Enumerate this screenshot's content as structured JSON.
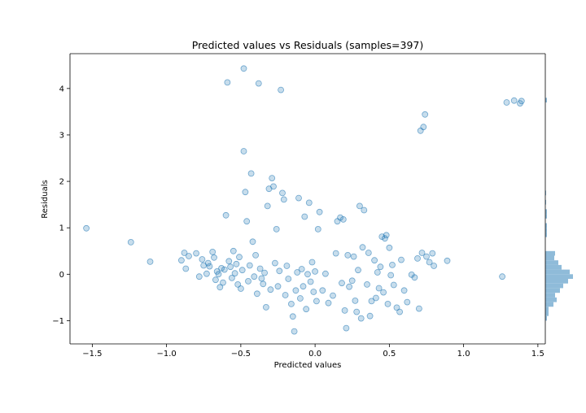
{
  "chart_data": {
    "type": "scatter",
    "title": "Predicted values vs Residuals (samples=397)",
    "xlabel": "Predicted values",
    "ylabel": "Residuals",
    "xlim": [
      -1.65,
      1.55
    ],
    "ylim": [
      -1.5,
      4.75
    ],
    "xticks": [
      -1.5,
      -1.0,
      -0.5,
      0.0,
      0.5,
      1.0,
      1.5
    ],
    "xtick_labels": [
      "−1.5",
      "−1.0",
      "−0.5",
      "0.0",
      "0.5",
      "1.0",
      "1.5"
    ],
    "yticks": [
      -1,
      0,
      1,
      2,
      3,
      4
    ],
    "ytick_labels": [
      "−1",
      "0",
      "1",
      "2",
      "3",
      "4"
    ],
    "point_color": "#1f77b4",
    "point_alpha": 0.25,
    "histogram_color": "#8fbbd9",
    "points": [
      [
        -1.54,
        0.99
      ],
      [
        -1.24,
        0.69
      ],
      [
        -1.11,
        0.27
      ],
      [
        -0.9,
        0.3
      ],
      [
        -0.88,
        0.46
      ],
      [
        -0.87,
        0.12
      ],
      [
        -0.85,
        0.39
      ],
      [
        -0.8,
        0.45
      ],
      [
        -0.78,
        -0.05
      ],
      [
        -0.76,
        0.32
      ],
      [
        -0.75,
        0.19
      ],
      [
        -0.73,
        0.01
      ],
      [
        -0.72,
        0.24
      ],
      [
        -0.71,
        0.17
      ],
      [
        -0.69,
        0.48
      ],
      [
        -0.68,
        0.36
      ],
      [
        -0.67,
        -0.12
      ],
      [
        -0.66,
        0.06
      ],
      [
        -0.65,
        0.0
      ],
      [
        -0.64,
        -0.28
      ],
      [
        -0.63,
        0.13
      ],
      [
        -0.62,
        -0.18
      ],
      [
        -0.61,
        0.1
      ],
      [
        -0.6,
        1.27
      ],
      [
        -0.59,
        4.13
      ],
      [
        -0.58,
        0.28
      ],
      [
        -0.57,
        0.16
      ],
      [
        -0.56,
        -0.08
      ],
      [
        -0.55,
        0.5
      ],
      [
        -0.54,
        0.02
      ],
      [
        -0.53,
        0.22
      ],
      [
        -0.52,
        -0.22
      ],
      [
        -0.51,
        0.37
      ],
      [
        -0.5,
        -0.31
      ],
      [
        -0.49,
        0.09
      ],
      [
        -0.48,
        4.43
      ],
      [
        -0.48,
        2.65
      ],
      [
        -0.47,
        1.77
      ],
      [
        -0.46,
        1.14
      ],
      [
        -0.45,
        -0.15
      ],
      [
        -0.44,
        0.19
      ],
      [
        -0.43,
        2.17
      ],
      [
        -0.42,
        0.7
      ],
      [
        -0.41,
        -0.05
      ],
      [
        -0.4,
        0.41
      ],
      [
        -0.39,
        -0.42
      ],
      [
        -0.38,
        4.11
      ],
      [
        -0.37,
        0.12
      ],
      [
        -0.36,
        -0.09
      ],
      [
        -0.35,
        -0.21
      ],
      [
        -0.34,
        0.03
      ],
      [
        -0.33,
        -0.71
      ],
      [
        -0.32,
        1.47
      ],
      [
        -0.31,
        1.84
      ],
      [
        -0.3,
        -0.33
      ],
      [
        -0.29,
        2.07
      ],
      [
        -0.28,
        1.89
      ],
      [
        -0.27,
        0.24
      ],
      [
        -0.26,
        0.97
      ],
      [
        -0.25,
        -0.26
      ],
      [
        -0.24,
        0.07
      ],
      [
        -0.23,
        3.97
      ],
      [
        -0.22,
        1.75
      ],
      [
        -0.21,
        1.61
      ],
      [
        -0.2,
        -0.45
      ],
      [
        -0.19,
        0.18
      ],
      [
        -0.18,
        -0.1
      ],
      [
        -0.16,
        -0.64
      ],
      [
        -0.15,
        -0.91
      ],
      [
        -0.14,
        -1.23
      ],
      [
        -0.13,
        -0.35
      ],
      [
        -0.12,
        0.04
      ],
      [
        -0.11,
        1.64
      ],
      [
        -0.1,
        -0.52
      ],
      [
        -0.09,
        0.11
      ],
      [
        -0.08,
        -0.26
      ],
      [
        -0.07,
        1.24
      ],
      [
        -0.06,
        -0.75
      ],
      [
        -0.05,
        0.0
      ],
      [
        -0.04,
        1.54
      ],
      [
        -0.03,
        -0.16
      ],
      [
        -0.02,
        0.26
      ],
      [
        -0.01,
        -0.38
      ],
      [
        0.0,
        0.06
      ],
      [
        0.01,
        -0.58
      ],
      [
        0.02,
        0.97
      ],
      [
        0.03,
        1.34
      ],
      [
        0.05,
        -0.35
      ],
      [
        0.07,
        0.01
      ],
      [
        0.09,
        -0.62
      ],
      [
        0.12,
        -0.46
      ],
      [
        0.14,
        0.45
      ],
      [
        0.15,
        1.14
      ],
      [
        0.17,
        1.22
      ],
      [
        0.18,
        -0.19
      ],
      [
        0.19,
        1.18
      ],
      [
        0.2,
        -0.78
      ],
      [
        0.21,
        -1.16
      ],
      [
        0.22,
        0.41
      ],
      [
        0.23,
        -0.27
      ],
      [
        0.25,
        -0.14
      ],
      [
        0.26,
        0.38
      ],
      [
        0.27,
        -0.57
      ],
      [
        0.28,
        -0.81
      ],
      [
        0.29,
        0.09
      ],
      [
        0.3,
        1.47
      ],
      [
        0.31,
        -0.95
      ],
      [
        0.32,
        0.58
      ],
      [
        0.33,
        1.38
      ],
      [
        0.35,
        -0.22
      ],
      [
        0.36,
        0.46
      ],
      [
        0.37,
        -0.9
      ],
      [
        0.38,
        -0.58
      ],
      [
        0.4,
        0.3
      ],
      [
        0.41,
        -0.51
      ],
      [
        0.42,
        0.04
      ],
      [
        0.43,
        -0.3
      ],
      [
        0.44,
        0.16
      ],
      [
        0.45,
        0.81
      ],
      [
        0.46,
        -0.39
      ],
      [
        0.47,
        0.77
      ],
      [
        0.48,
        0.84
      ],
      [
        0.49,
        -0.64
      ],
      [
        0.5,
        0.57
      ],
      [
        0.51,
        -0.02
      ],
      [
        0.52,
        0.2
      ],
      [
        0.53,
        -0.23
      ],
      [
        0.55,
        -0.72
      ],
      [
        0.57,
        -0.81
      ],
      [
        0.58,
        0.31
      ],
      [
        0.6,
        -0.35
      ],
      [
        0.62,
        -0.6
      ],
      [
        0.65,
        -0.01
      ],
      [
        0.67,
        -0.07
      ],
      [
        0.69,
        0.34
      ],
      [
        0.7,
        -0.74
      ],
      [
        0.71,
        3.09
      ],
      [
        0.72,
        0.46
      ],
      [
        0.73,
        3.17
      ],
      [
        0.74,
        3.44
      ],
      [
        0.75,
        0.38
      ],
      [
        0.77,
        0.26
      ],
      [
        0.79,
        0.45
      ],
      [
        0.8,
        0.18
      ],
      [
        0.89,
        0.29
      ],
      [
        1.26,
        -0.05
      ],
      [
        1.29,
        3.7
      ],
      [
        1.34,
        3.74
      ],
      [
        1.38,
        3.68
      ],
      [
        1.39,
        3.73
      ]
    ],
    "marginal_histogram": {
      "orientation": "horizontal",
      "bins": [
        {
          "y0": -1.0,
          "y1": -0.9,
          "count": 2
        },
        {
          "y0": -0.9,
          "y1": -0.8,
          "count": 4
        },
        {
          "y0": -0.8,
          "y1": -0.7,
          "count": 4
        },
        {
          "y0": -0.7,
          "y1": -0.6,
          "count": 10
        },
        {
          "y0": -0.6,
          "y1": -0.5,
          "count": 14
        },
        {
          "y0": -0.5,
          "y1": -0.4,
          "count": 12
        },
        {
          "y0": -0.4,
          "y1": -0.3,
          "count": 18
        },
        {
          "y0": -0.3,
          "y1": -0.2,
          "count": 22
        },
        {
          "y0": -0.2,
          "y1": -0.1,
          "count": 28
        },
        {
          "y0": -0.1,
          "y1": 0.0,
          "count": 34
        },
        {
          "y0": 0.0,
          "y1": 0.1,
          "count": 30
        },
        {
          "y0": 0.1,
          "y1": 0.2,
          "count": 20
        },
        {
          "y0": 0.2,
          "y1": 0.3,
          "count": 16
        },
        {
          "y0": 0.3,
          "y1": 0.4,
          "count": 11
        },
        {
          "y0": 0.4,
          "y1": 0.5,
          "count": 12
        },
        {
          "y0": 0.8,
          "y1": 0.9,
          "count": 2
        },
        {
          "y0": 0.9,
          "y1": 1.0,
          "count": 2
        },
        {
          "y0": 1.0,
          "y1": 1.1,
          "count": 2
        },
        {
          "y0": 1.2,
          "y1": 1.3,
          "count": 2
        },
        {
          "y0": 1.3,
          "y1": 1.4,
          "count": 2
        },
        {
          "y0": 1.5,
          "y1": 1.6,
          "count": 1
        },
        {
          "y0": 1.7,
          "y1": 1.8,
          "count": 1
        },
        {
          "y0": 3.7,
          "y1": 3.8,
          "count": 2
        }
      ]
    }
  }
}
